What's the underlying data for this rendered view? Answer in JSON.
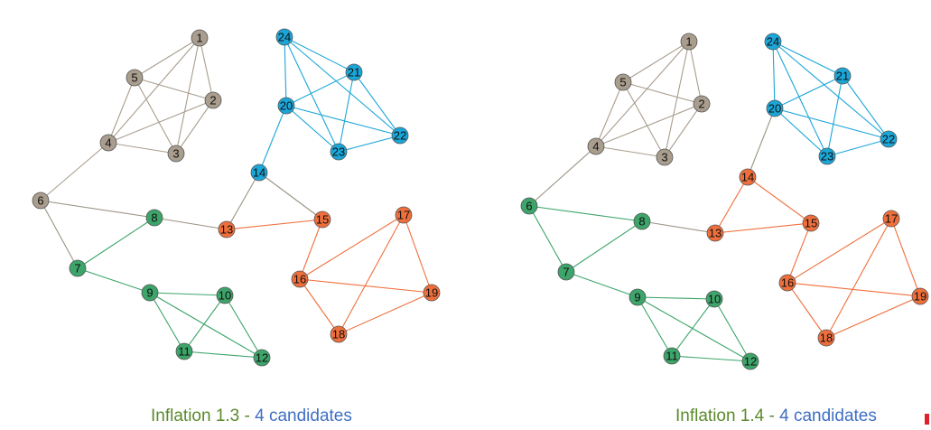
{
  "colors": {
    "gray": "#a99d8e",
    "blue": "#1ba6d8",
    "green": "#3da46a",
    "orange": "#ef6f3c",
    "node_stroke": "#555555"
  },
  "panels": [
    {
      "caption_prefix": "Inflation 1.3 - ",
      "caption_suffix": "4 candidates",
      "nodes": [
        {
          "id": "1",
          "cluster": "gray"
        },
        {
          "id": "2",
          "cluster": "gray"
        },
        {
          "id": "3",
          "cluster": "gray"
        },
        {
          "id": "4",
          "cluster": "gray"
        },
        {
          "id": "5",
          "cluster": "gray"
        },
        {
          "id": "6",
          "cluster": "gray"
        },
        {
          "id": "7",
          "cluster": "green"
        },
        {
          "id": "8",
          "cluster": "green"
        },
        {
          "id": "9",
          "cluster": "green"
        },
        {
          "id": "10",
          "cluster": "green"
        },
        {
          "id": "11",
          "cluster": "green"
        },
        {
          "id": "12",
          "cluster": "green"
        },
        {
          "id": "13",
          "cluster": "orange"
        },
        {
          "id": "14",
          "cluster": "blue"
        },
        {
          "id": "15",
          "cluster": "orange"
        },
        {
          "id": "16",
          "cluster": "orange"
        },
        {
          "id": "17",
          "cluster": "orange"
        },
        {
          "id": "18",
          "cluster": "orange"
        },
        {
          "id": "19",
          "cluster": "orange"
        },
        {
          "id": "20",
          "cluster": "blue"
        },
        {
          "id": "21",
          "cluster": "blue"
        },
        {
          "id": "22",
          "cluster": "blue"
        },
        {
          "id": "23",
          "cluster": "blue"
        },
        {
          "id": "24",
          "cluster": "blue"
        }
      ]
    },
    {
      "caption_prefix": "Inflation 1.4 - ",
      "caption_suffix": "4 candidates",
      "nodes": [
        {
          "id": "1",
          "cluster": "gray"
        },
        {
          "id": "2",
          "cluster": "gray"
        },
        {
          "id": "3",
          "cluster": "gray"
        },
        {
          "id": "4",
          "cluster": "gray"
        },
        {
          "id": "5",
          "cluster": "gray"
        },
        {
          "id": "6",
          "cluster": "green"
        },
        {
          "id": "7",
          "cluster": "green"
        },
        {
          "id": "8",
          "cluster": "green"
        },
        {
          "id": "9",
          "cluster": "green"
        },
        {
          "id": "10",
          "cluster": "green"
        },
        {
          "id": "11",
          "cluster": "green"
        },
        {
          "id": "12",
          "cluster": "green"
        },
        {
          "id": "13",
          "cluster": "orange"
        },
        {
          "id": "14",
          "cluster": "orange"
        },
        {
          "id": "15",
          "cluster": "orange"
        },
        {
          "id": "16",
          "cluster": "orange"
        },
        {
          "id": "17",
          "cluster": "orange"
        },
        {
          "id": "18",
          "cluster": "orange"
        },
        {
          "id": "19",
          "cluster": "orange"
        },
        {
          "id": "20",
          "cluster": "blue"
        },
        {
          "id": "21",
          "cluster": "blue"
        },
        {
          "id": "22",
          "cluster": "blue"
        },
        {
          "id": "23",
          "cluster": "blue"
        },
        {
          "id": "24",
          "cluster": "blue"
        }
      ]
    }
  ],
  "edges": [
    [
      "1",
      "5"
    ],
    [
      "1",
      "4"
    ],
    [
      "1",
      "3"
    ],
    [
      "1",
      "2"
    ],
    [
      "2",
      "5"
    ],
    [
      "2",
      "4"
    ],
    [
      "2",
      "3"
    ],
    [
      "3",
      "5"
    ],
    [
      "3",
      "4"
    ],
    [
      "4",
      "5"
    ],
    [
      "4",
      "6"
    ],
    [
      "6",
      "7"
    ],
    [
      "6",
      "8"
    ],
    [
      "7",
      "8"
    ],
    [
      "7",
      "9"
    ],
    [
      "8",
      "13"
    ],
    [
      "9",
      "10"
    ],
    [
      "9",
      "11"
    ],
    [
      "9",
      "12"
    ],
    [
      "10",
      "11"
    ],
    [
      "10",
      "12"
    ],
    [
      "11",
      "12"
    ],
    [
      "13",
      "14"
    ],
    [
      "13",
      "15"
    ],
    [
      "14",
      "15"
    ],
    [
      "14",
      "20"
    ],
    [
      "15",
      "16"
    ],
    [
      "16",
      "17"
    ],
    [
      "16",
      "18"
    ],
    [
      "16",
      "19"
    ],
    [
      "17",
      "18"
    ],
    [
      "17",
      "19"
    ],
    [
      "18",
      "19"
    ],
    [
      "20",
      "21"
    ],
    [
      "20",
      "22"
    ],
    [
      "20",
      "23"
    ],
    [
      "20",
      "24"
    ],
    [
      "21",
      "22"
    ],
    [
      "21",
      "23"
    ],
    [
      "21",
      "24"
    ],
    [
      "22",
      "23"
    ],
    [
      "22",
      "24"
    ],
    [
      "23",
      "24"
    ]
  ]
}
